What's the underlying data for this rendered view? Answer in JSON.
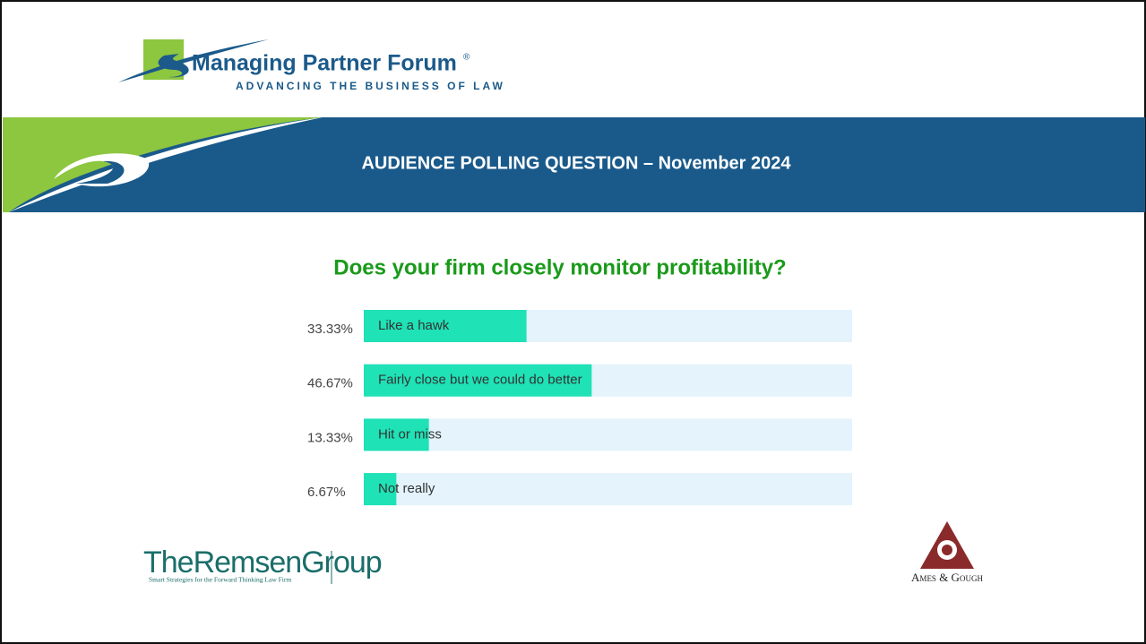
{
  "header": {
    "logo_name": "Managing Partner Forum",
    "logo_mark": "®",
    "logo_tagline": "ADVANCING THE BUSINESS OF LAW",
    "banner": "AUDIENCE POLLING QUESTION – November 2024"
  },
  "chart_data": {
    "type": "bar",
    "orientation": "horizontal",
    "title": "Does your firm closely monitor profitability?",
    "categories": [
      "Like a hawk",
      "Fairly close but we could do better",
      "Hit or miss",
      "Not really"
    ],
    "values": [
      33.33,
      46.67,
      13.33,
      6.67
    ],
    "value_labels": [
      "33.33%",
      "46.67%",
      "13.33%",
      "6.67%"
    ],
    "color": "#1fe2b6",
    "track_color": "#e4f3fc",
    "xlim": [
      0,
      100
    ]
  },
  "footer": {
    "left_name": "TheRemsenGroup",
    "left_tagline": "Smart Strategies for the Forward Thinking Law Firm",
    "right_name": "Ames & Gough"
  }
}
